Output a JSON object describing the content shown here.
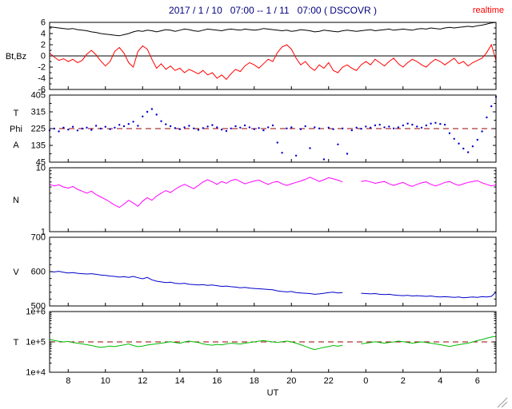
{
  "header": {
    "realtime_label": "realtime",
    "realtime_color": "#ff0000",
    "title_color": "#000080"
  },
  "chart_data": {
    "type": "line",
    "title": "2017 / 1 / 10   07:00 -- 1 / 11   07:00 ( DSCOVR )",
    "legend_position": "none",
    "grid": false,
    "x": {
      "label": "UT",
      "start_hour": 7,
      "end_hour": 31,
      "step_hours": 0.25,
      "tick_hours": [
        8,
        10,
        12,
        14,
        16,
        18,
        20,
        22,
        24,
        26,
        28,
        30
      ],
      "tick_labels": [
        "8",
        "10",
        "12",
        "14",
        "16",
        "18",
        "20",
        "22",
        "0",
        "2",
        "4",
        "6"
      ]
    },
    "panels": [
      {
        "id": "bt-bz",
        "label_lines": [
          "Bt,Bz"
        ],
        "type": "line",
        "scale": "linear",
        "ylim": [
          -6,
          6
        ],
        "yticks": [
          {
            "v": 6,
            "label": "6"
          },
          {
            "v": 4,
            "label": "4"
          },
          {
            "v": 2,
            "label": "2"
          },
          {
            "v": 0,
            "label": "0"
          },
          {
            "v": -2,
            "label": "-2"
          },
          {
            "v": -4,
            "label": "-4"
          },
          {
            "v": -6,
            "label": "-6"
          }
        ],
        "yminor_step": 1,
        "zero_line": 0,
        "series": [
          {
            "name": "Bt",
            "color": "#000000",
            "values": [
              5.2,
              5.1,
              5.0,
              4.9,
              4.8,
              4.9,
              4.7,
              4.6,
              4.5,
              4.3,
              4.2,
              4.0,
              3.9,
              3.8,
              3.7,
              3.6,
              3.8,
              4.0,
              4.3,
              4.5,
              4.4,
              4.6,
              4.5,
              4.3,
              4.5,
              4.7,
              4.6,
              4.4,
              4.6,
              4.8,
              4.7,
              4.5,
              4.4,
              4.6,
              4.8,
              4.7,
              4.6,
              4.5,
              4.7,
              4.8,
              4.7,
              4.6,
              4.8,
              4.7,
              4.6,
              4.7,
              4.9,
              4.8,
              4.7,
              4.6,
              4.5,
              4.6,
              4.4,
              4.5,
              4.7,
              4.6,
              4.5,
              4.3,
              4.4,
              4.6,
              4.5,
              4.4,
              4.3,
              4.5,
              4.6,
              4.5,
              4.4,
              4.5,
              4.6,
              4.7,
              4.5,
              4.6,
              4.7,
              4.8,
              4.6,
              4.7,
              4.8,
              4.7,
              4.6,
              4.8,
              4.9,
              4.8,
              5.0,
              4.9,
              4.8,
              5.0,
              5.1,
              5.0,
              5.1,
              5.2,
              5.3,
              5.2,
              5.4,
              5.5,
              5.7,
              5.9,
              6.0
            ]
          },
          {
            "name": "Bz",
            "color": "#ff0000",
            "values": [
              0.5,
              -0.2,
              -0.8,
              -0.5,
              -1.0,
              -0.6,
              -1.2,
              -0.8,
              0.3,
              1.0,
              0.2,
              -0.9,
              -1.8,
              -1.0,
              0.8,
              1.5,
              0.5,
              -1.2,
              -2.0,
              0.8,
              1.8,
              1.2,
              -0.6,
              -2.2,
              -1.4,
              -2.4,
              -1.8,
              -2.6,
              -2.2,
              -3.0,
              -2.4,
              -2.8,
              -3.2,
              -2.6,
              -3.4,
              -3.0,
              -4.0,
              -3.4,
              -4.2,
              -3.2,
              -2.4,
              -2.8,
              -1.8,
              -1.2,
              -1.6,
              -2.2,
              -1.4,
              -0.6,
              -1.0,
              0.6,
              1.6,
              2.0,
              1.2,
              -0.4,
              -1.6,
              -1.0,
              -2.0,
              -2.6,
              -1.6,
              -2.2,
              -1.2,
              -2.6,
              -3.0,
              -2.0,
              -1.6,
              -2.2,
              -2.6,
              -1.6,
              -1.0,
              -1.6,
              -0.6,
              -1.2,
              -1.8,
              -1.0,
              -0.4,
              -1.4,
              -2.0,
              -1.2,
              -0.6,
              -1.0,
              -1.6,
              -2.0,
              -1.2,
              -0.6,
              -1.0,
              -1.6,
              -1.0,
              -0.4,
              -1.4,
              -1.0,
              -1.8,
              -1.2,
              -0.8,
              -0.4,
              0.6,
              2.0,
              -0.8
            ]
          }
        ]
      },
      {
        "id": "phi",
        "label_lines": [
          "T",
          "Phi",
          "A"
        ],
        "type": "scatter",
        "scale": "linear",
        "ylim": [
          45,
          405
        ],
        "yticks": [
          {
            "v": 405,
            "label": "405"
          },
          {
            "v": 315,
            "label": "315"
          },
          {
            "v": 225,
            "label": "225"
          },
          {
            "v": 135,
            "label": "135"
          },
          {
            "v": 45,
            "label": "45"
          }
        ],
        "yminor_step": 45,
        "ref_line": {
          "v": 225,
          "color": "#990000"
        },
        "series": [
          {
            "name": "Phi",
            "color": "#0000cc",
            "values": [
              215,
              225,
              210,
              230,
              220,
              235,
              215,
              225,
              230,
              218,
              240,
              225,
              235,
              222,
              230,
              245,
              238,
              250,
              262,
              240,
              290,
              315,
              330,
              300,
              265,
              248,
              238,
              228,
              222,
              232,
              240,
              226,
              218,
              228,
              236,
              244,
              232,
              220,
              212,
              226,
              238,
              230,
              242,
              232,
              222,
              228,
              216,
              232,
              242,
              150,
              95,
              226,
              232,
              80,
              222,
              238,
              120,
              232,
              226,
              60,
              230,
              222,
              140,
              226,
              90,
              216,
              230,
              224,
              236,
              230,
              242,
              246,
              232,
              236,
              226,
              232,
              242,
              252,
              246,
              236,
              230,
              242,
              252,
              256,
              250,
              246,
              200,
              170,
              145,
              118,
              98,
              130,
              165,
              210,
              285,
              345,
              395
            ]
          }
        ]
      },
      {
        "id": "n",
        "label_lines": [
          "N"
        ],
        "type": "line",
        "scale": "log",
        "ylim": [
          1,
          10
        ],
        "yticks": [
          {
            "v": 10,
            "label": "10"
          },
          {
            "v": 1,
            "label": "1"
          }
        ],
        "series": [
          {
            "name": "N",
            "color": "#ff00ff",
            "values": [
              5.5,
              5.2,
              5.4,
              5.0,
              4.8,
              5.1,
              4.6,
              4.3,
              4.0,
              4.3,
              3.8,
              3.5,
              3.2,
              2.9,
              2.6,
              2.4,
              2.7,
              3.1,
              2.8,
              2.5,
              3.0,
              3.4,
              3.1,
              3.6,
              4.0,
              4.4,
              4.1,
              4.6,
              5.1,
              5.5,
              5.1,
              4.7,
              5.3,
              6.0,
              6.5,
              6.0,
              5.5,
              6.1,
              5.7,
              6.3,
              6.6,
              6.1,
              5.6,
              5.9,
              6.2,
              6.4,
              5.9,
              5.5,
              5.9,
              6.1,
              5.6,
              5.3,
              5.6,
              5.9,
              6.2,
              6.6,
              7.1,
              6.6,
              6.1,
              6.5,
              7.0,
              6.7,
              6.4,
              6.0,
              null,
              null,
              null,
              6.1,
              6.3,
              6.0,
              5.7,
              5.9,
              6.1,
              5.6,
              5.3,
              5.6,
              5.9,
              5.4,
              5.1,
              5.5,
              5.8,
              6.0,
              5.5,
              5.2,
              5.5,
              5.9,
              6.1,
              5.6,
              5.3,
              5.6,
              5.9,
              6.1,
              6.3,
              5.8,
              5.5,
              5.2,
              5.4
            ]
          }
        ]
      },
      {
        "id": "v",
        "label_lines": [
          "V"
        ],
        "type": "line",
        "scale": "linear",
        "ylim": [
          500,
          700
        ],
        "yticks": [
          {
            "v": 700,
            "label": "700"
          },
          {
            "v": 600,
            "label": "600"
          },
          {
            "v": 500,
            "label": "500"
          }
        ],
        "yminor_step": 20,
        "series": [
          {
            "name": "V",
            "color": "#0000cc",
            "values": [
              600,
              599,
              601,
              598,
              596,
              597,
              595,
              594,
              593,
              594,
              592,
              590,
              589,
              587,
              586,
              584,
              585,
              583,
              586,
              582,
              579,
              583,
              576,
              572,
              570,
              568,
              569,
              566,
              565,
              566,
              563,
              562,
              561,
              562,
              560,
              561,
              559,
              557,
              558,
              556,
              555,
              553,
              554,
              552,
              551,
              550,
              549,
              548,
              547,
              544,
              542,
              541,
              542,
              539,
              538,
              537,
              536,
              534,
              535,
              537,
              539,
              540,
              538,
              539,
              null,
              null,
              null,
              537,
              536,
              535,
              536,
              534,
              533,
              534,
              532,
              531,
              530,
              531,
              529,
              530,
              529,
              528,
              529,
              527,
              526,
              527,
              526,
              525,
              526,
              524,
              525,
              526,
              525,
              527,
              526,
              528,
              540
            ]
          }
        ]
      },
      {
        "id": "t",
        "label_lines": [
          "T"
        ],
        "type": "line",
        "scale": "log",
        "ylim": [
          10000,
          1000000
        ],
        "yticks": [
          {
            "v": 1000000,
            "label": "1e+6"
          },
          {
            "v": 100000,
            "label": "1e+5"
          },
          {
            "v": 10000,
            "label": "1e+4"
          }
        ],
        "ref_line": {
          "v": 100000,
          "color": "#990000"
        },
        "series": [
          {
            "name": "T",
            "color": "#00bb00",
            "values": [
              120000,
              112000,
              105000,
              100000,
              104000,
              96000,
              91000,
              86000,
              81000,
              76000,
              71000,
              66000,
              69000,
              73000,
              70000,
              75000,
              80000,
              86000,
              76000,
              70000,
              73000,
              79000,
              83000,
              86000,
              91000,
              96000,
              101000,
              95000,
              90000,
              100000,
              106000,
              100000,
              95000,
              86000,
              81000,
              78000,
              83000,
              80000,
              86000,
              91000,
              88000,
              85000,
              91000,
              96000,
              100000,
              106000,
              110000,
              105000,
              100000,
              96000,
              101000,
              106000,
              100000,
              91000,
              81000,
              71000,
              62000,
              56000,
              61000,
              66000,
              71000,
              76000,
              72000,
              78000,
              null,
              null,
              null,
              86000,
              91000,
              96000,
              101000,
              96000,
              91000,
              96000,
              100000,
              106000,
              101000,
              96000,
              91000,
              96000,
              100000,
              96000,
              91000,
              86000,
              81000,
              76000,
              71000,
              76000,
              81000,
              86000,
              91000,
              100000,
              110000,
              120000,
              132000,
              145000,
              150000
            ]
          }
        ]
      }
    ]
  }
}
